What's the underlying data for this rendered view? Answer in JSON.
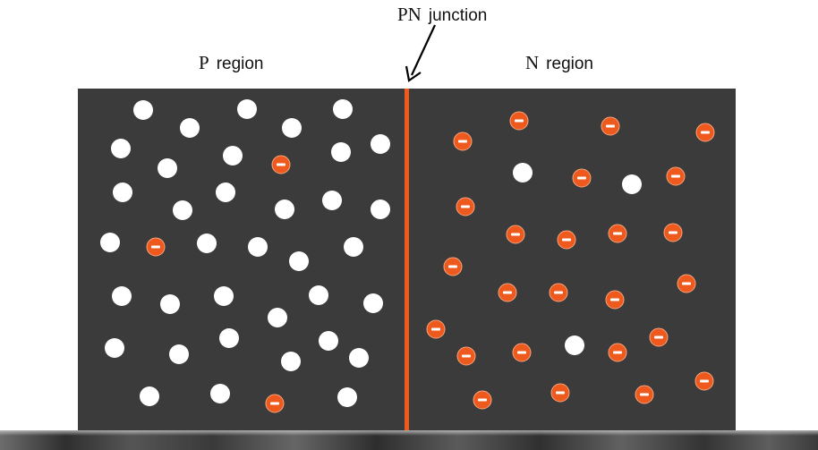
{
  "labels": {
    "p_region_letter": "P",
    "p_region_word": "region",
    "n_region_letter": "N",
    "n_region_word": "region",
    "junction_letters": "PN",
    "junction_word": "junction"
  },
  "colors": {
    "panel": "#3b3b3b",
    "junction": "#ee5a1e",
    "hole": "#ffffff",
    "electron": "#ee5a1e"
  },
  "particles": {
    "hole_sign": "",
    "electron_sign": "-"
  }
}
